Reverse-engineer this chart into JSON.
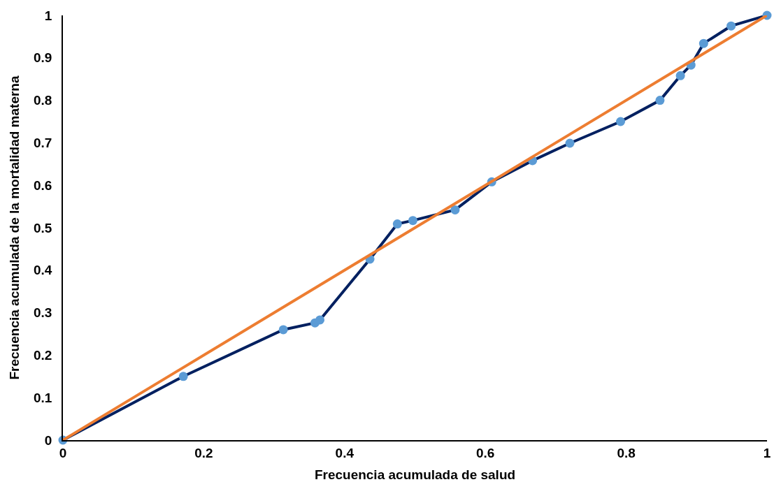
{
  "chart_data": {
    "type": "line",
    "xlabel": "Frecuencia acumulada de salud",
    "ylabel": "Frecuencia acumulada de la mortalidad materna",
    "xlim": [
      0,
      1
    ],
    "ylim": [
      0,
      1
    ],
    "xticks": [
      0,
      0.2,
      0.4,
      0.6,
      0.8,
      1
    ],
    "yticks": [
      0,
      0.1,
      0.2,
      0.3,
      0.4,
      0.5,
      0.6,
      0.7,
      0.8,
      0.9,
      1
    ],
    "marker": "circle",
    "line_style": "solid",
    "series": [
      {
        "color": "#002060",
        "colors": [
          "#5b9bd5",
          "#5b9bd5",
          "#5b9bd5",
          "#5b9bd5",
          "#5b9bd5",
          "#5b9bd5",
          "#5b9bd5",
          "#5b9bd5",
          "#5b9bd5",
          "#5b9bd5",
          "#5b9bd5",
          "#5b9bd5",
          "#5b9bd5",
          "#5b9bd5",
          "#5b9bd5",
          "#5b9bd5",
          "#5b9bd5",
          "#5b9bd5",
          "#5b9bd5"
        ],
        "x": [
          0,
          0.171,
          0.313,
          0.358,
          0.365,
          0.436,
          0.475,
          0.497,
          0.557,
          0.609,
          0.667,
          0.72,
          0.792,
          0.848,
          0.877,
          0.892,
          0.91,
          0.949,
          1
        ],
        "values": [
          0,
          0.15,
          0.26,
          0.276,
          0.283,
          0.426,
          0.509,
          0.517,
          0.542,
          0.608,
          0.658,
          0.699,
          0.75,
          0.8,
          0.858,
          0.883,
          0.934,
          0.975,
          1
        ]
      },
      {
        "color": "#ed7d31",
        "marker": "none",
        "x": [
          0,
          1
        ],
        "values": [
          0,
          1
        ]
      }
    ]
  }
}
